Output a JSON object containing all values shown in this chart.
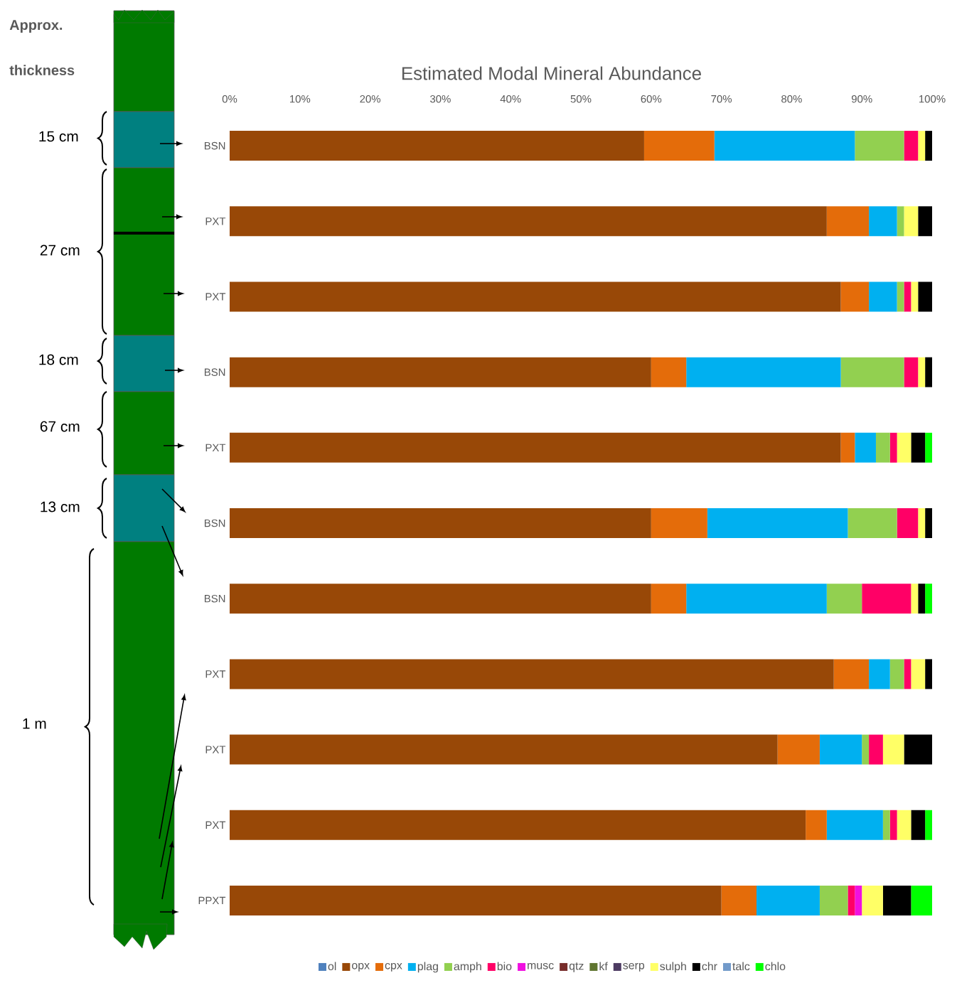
{
  "chart_data": {
    "type": "bar",
    "orientation": "horizontal",
    "stacked": true,
    "legend": "bottom",
    "title": "Estimated Modal Mineral Abundance",
    "categories": [
      "BSN",
      "PXT",
      "PXT",
      "BSN",
      "PXT",
      "BSN",
      "BSN",
      "PXT",
      "PXT",
      "PXT",
      "PPXT"
    ],
    "xlim": [
      0,
      100
    ],
    "xticks": [
      {
        "value": 0,
        "label": "0%"
      },
      {
        "value": 10,
        "label": "10%"
      },
      {
        "value": 20,
        "label": "20%"
      },
      {
        "value": 30,
        "label": "30%"
      },
      {
        "value": 40,
        "label": "40%"
      },
      {
        "value": 50,
        "label": "50%"
      },
      {
        "value": 60,
        "label": "60%"
      },
      {
        "value": 70,
        "label": "70%"
      },
      {
        "value": 80,
        "label": "80%"
      },
      {
        "value": 90,
        "label": "90%"
      },
      {
        "value": 100,
        "label": "100%"
      }
    ],
    "annotations": [
      "Approx. thickness",
      "15 cm",
      "27 cm",
      "18 cm",
      "67 cm",
      "13 cm",
      "1 m"
    ],
    "series": [
      {
        "name": "ol",
        "color": "#4f81bd",
        "values": [
          0,
          0,
          0,
          0,
          0,
          0,
          0,
          0,
          0,
          0,
          0
        ]
      },
      {
        "name": "opx",
        "color": "#984807",
        "values": [
          59,
          85,
          87,
          60,
          87,
          60,
          60,
          86,
          78,
          82,
          70
        ]
      },
      {
        "name": "cpx",
        "color": "#e46c0a",
        "values": [
          10,
          6,
          4,
          5,
          2,
          8,
          5,
          5,
          6,
          3,
          5
        ]
      },
      {
        "name": "plag",
        "color": "#00b0f0",
        "values": [
          20,
          4,
          4,
          22,
          3,
          20,
          20,
          3,
          6,
          8,
          9
        ]
      },
      {
        "name": "amph",
        "color": "#92d050",
        "values": [
          7,
          1,
          1,
          9,
          2,
          7,
          5,
          2,
          1,
          1,
          4
        ]
      },
      {
        "name": "bio",
        "color": "#ff0066",
        "values": [
          2,
          0,
          1,
          2,
          1,
          3,
          7,
          1,
          2,
          1,
          1
        ]
      },
      {
        "name": "musc",
        "color": "#f010e0",
        "values": [
          0,
          0,
          0,
          0,
          0,
          0,
          0,
          0,
          0,
          0,
          1
        ]
      },
      {
        "name": "qtz",
        "color": "#772c2a",
        "values": [
          0,
          0,
          0,
          0,
          0,
          0,
          0,
          0,
          0,
          0,
          0
        ]
      },
      {
        "name": "kf",
        "color": "#5f7530",
        "values": [
          0,
          0,
          0,
          0,
          0,
          0,
          0,
          0,
          0,
          0,
          0
        ]
      },
      {
        "name": "serp",
        "color": "#4d3b62",
        "values": [
          0,
          0,
          0,
          0,
          0,
          0,
          0,
          0,
          0,
          0,
          0
        ]
      },
      {
        "name": "sulph",
        "color": "#ffff66",
        "values": [
          1,
          2,
          1,
          1,
          2,
          1,
          1,
          2,
          3,
          2,
          3
        ]
      },
      {
        "name": "chr",
        "color": "#000000",
        "values": [
          1,
          2,
          2,
          1,
          2,
          1,
          1,
          1,
          4,
          2,
          4
        ]
      },
      {
        "name": "talc",
        "color": "#729aca",
        "values": [
          0,
          0,
          0,
          0,
          0,
          0,
          0,
          0,
          0,
          0,
          0
        ]
      },
      {
        "name": "chlo",
        "color": "#00ff00",
        "values": [
          0,
          0,
          0,
          0,
          1,
          0,
          1,
          0,
          0,
          1,
          3
        ]
      }
    ]
  }
}
